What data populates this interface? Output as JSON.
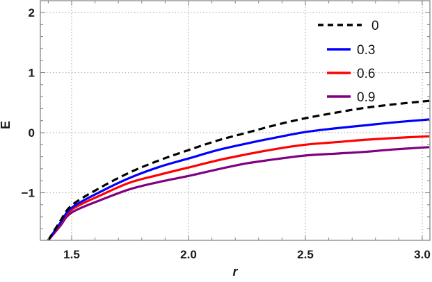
{
  "chart_data": {
    "type": "line",
    "title": "",
    "xlabel": "r",
    "ylabel": "E",
    "xlim": [
      1.35,
      3.03
    ],
    "ylim": [
      -1.78,
      2.2
    ],
    "grid": true,
    "legend_position": "upper right (inside)",
    "x_ticks": [
      1.5,
      2.0,
      2.5,
      3.0
    ],
    "x_tick_labels": [
      "1.5",
      "2.0",
      "2.5",
      "3.0"
    ],
    "y_ticks": [
      -1,
      0,
      1,
      2
    ],
    "y_tick_labels": [
      "−1",
      "0",
      "1",
      "2"
    ],
    "x": [
      1.4,
      1.45,
      1.5,
      1.625,
      1.75,
      1.875,
      2.0,
      2.125,
      2.25,
      2.375,
      2.5,
      2.625,
      2.75,
      2.875,
      3.03
    ],
    "series": [
      {
        "name": "0",
        "color": "#000000",
        "style": "dashed",
        "values": [
          -1.79,
          -1.48,
          -1.21,
          -0.91,
          -0.66,
          -0.46,
          -0.29,
          -0.13,
          0.0,
          0.13,
          0.24,
          0.33,
          0.41,
          0.47,
          0.53
        ]
      },
      {
        "name": "0.3",
        "color": "#0000ff",
        "style": "solid",
        "values": [
          -1.79,
          -1.51,
          -1.25,
          -0.98,
          -0.75,
          -0.57,
          -0.43,
          -0.29,
          -0.18,
          -0.08,
          0.01,
          0.07,
          0.12,
          0.17,
          0.22
        ]
      },
      {
        "name": "0.6",
        "color": "#ff0000",
        "style": "solid",
        "values": [
          -1.79,
          -1.53,
          -1.28,
          -1.04,
          -0.83,
          -0.7,
          -0.58,
          -0.46,
          -0.36,
          -0.27,
          -0.2,
          -0.16,
          -0.12,
          -0.09,
          -0.06
        ]
      },
      {
        "name": "0.9",
        "color": "#800080",
        "style": "solid",
        "values": [
          -1.79,
          -1.56,
          -1.33,
          -1.12,
          -0.94,
          -0.82,
          -0.72,
          -0.61,
          -0.51,
          -0.44,
          -0.38,
          -0.35,
          -0.32,
          -0.28,
          -0.24
        ]
      }
    ]
  },
  "legend": {
    "items": [
      {
        "label": "0",
        "color": "#000000",
        "style": "dashed"
      },
      {
        "label": "0.3",
        "color": "#0000ff",
        "style": "solid"
      },
      {
        "label": "0.6",
        "color": "#ff0000",
        "style": "solid"
      },
      {
        "label": "0.9",
        "color": "#800080",
        "style": "solid"
      }
    ]
  },
  "colors": {
    "frame": "#7f7f7f",
    "grid": "#b4b4b4",
    "text": "#1a1a1a"
  }
}
